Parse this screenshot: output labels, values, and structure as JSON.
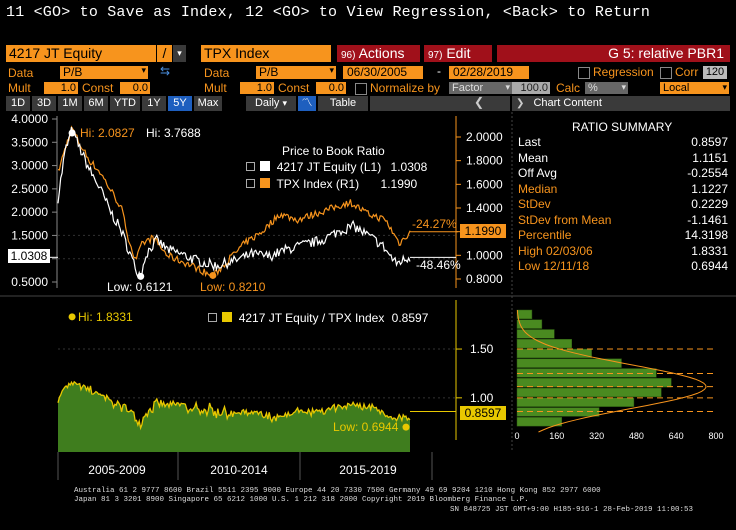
{
  "command_line": "11 <GO> to Save as Index, 12 <GO> to View Regression, <Back> to Return",
  "header": {
    "security1": "4217 JT Equity",
    "separator": "/",
    "security2": "TPX Index",
    "actions_label": "Actions",
    "actions_key": "96)",
    "edit_label": "Edit",
    "edit_key": "97)",
    "page_title": "G 5: relative PBR1"
  },
  "row2": {
    "data_label": "Data",
    "data1_value": "P/B",
    "data2_label": "Data",
    "data2_value": "P/B",
    "start_date": "06/30/2005",
    "dash": "-",
    "end_date": "02/28/2019",
    "regression_label": "Regression",
    "corr_label": "Corr",
    "corr_value": "120"
  },
  "row3": {
    "mult_label": "Mult",
    "mult1_value": "1.0",
    "const_label": "Const",
    "const1_value": "0.0",
    "mult2_label": "Mult",
    "mult2_value": "1.0",
    "const2_label": "Const",
    "const2_value": "0.0",
    "normalize_label": "Normalize by",
    "normalize_value": "Factor",
    "factor_value": "100.0",
    "calc_label": "Calc",
    "calc_value": "%",
    "currency_value": "Local"
  },
  "toolbar": {
    "periods": [
      "1D",
      "3D",
      "1M",
      "6M",
      "YTD",
      "1Y",
      "5Y",
      "Max"
    ],
    "selected_period": "5Y",
    "frequency": "Daily",
    "table_label": "Table",
    "chart_content_label": "Chart Content"
  },
  "top_chart": {
    "title": "Price to Book Ratio",
    "legend": [
      {
        "name": "4217 JT Equity  (L1)",
        "value": "1.0308",
        "color": "#ffffff"
      },
      {
        "name": "TPX Index   (R1)",
        "value": "1.1990",
        "color": "#f7941d"
      }
    ],
    "hi_left": "Hi: 3.7688",
    "hi_right": "Hi: 2.0827",
    "low_left": "Low: 0.6121",
    "low_right": "Low: 0.8210",
    "pct_tpx": "-24.27%",
    "pct_eq": "-48.46%",
    "last_eq": "1.0308",
    "last_tpx": "1.1990",
    "left_ticks": [
      "4.0000",
      "3.5000",
      "3.0000",
      "2.5000",
      "2.0000",
      "1.5000",
      "1.0000",
      "0.5000"
    ],
    "right_ticks": [
      "2.0000",
      "1.8000",
      "1.6000",
      "1.4000",
      "1.2000",
      "1.0000",
      "0.8000"
    ]
  },
  "bottom_chart": {
    "legend_name": "4217 JT Equity / TPX Index",
    "legend_value": "0.8597",
    "hi_label": "Hi: 1.8331",
    "low_label": "Low: 0.6944",
    "last_value": "0.8597",
    "ticks": [
      "1.50",
      "1.00"
    ],
    "x_labels": [
      "2005-2009",
      "2010-2014",
      "2015-2019"
    ],
    "hist_x_ticks": [
      "0",
      "160",
      "320",
      "480",
      "640",
      "800"
    ]
  },
  "ratio_summary": {
    "title": "RATIO SUMMARY",
    "rows": [
      {
        "label": "Last",
        "value": "0.8597",
        "color": "#ffffff"
      },
      {
        "label": "Mean",
        "value": "1.1151",
        "color": "#ffffff"
      },
      {
        "label": "Off Avg",
        "value": "-0.2554",
        "color": "#ffffff"
      },
      {
        "label": "Median",
        "value": "1.1227",
        "color": "#f7941d"
      },
      {
        "label": "StDev",
        "value": "0.2229",
        "color": "#f7941d"
      },
      {
        "label": "StDev from Mean",
        "value": "-1.1461",
        "color": "#f7941d"
      },
      {
        "label": "Percentile",
        "value": "14.3198",
        "color": "#f7941d"
      },
      {
        "label": "High 02/03/06",
        "value": "1.8331",
        "color": "#f7941d"
      },
      {
        "label": "Low 12/11/18",
        "value": "0.6944",
        "color": "#f7941d"
      }
    ]
  },
  "footer": {
    "line1": "Australia 61 2 9777 8600 Brazil 5511 2395 9000 Europe 44 20 7330 7500 Germany 49 69 9204 1210 Hong Kong 852 2977 6000",
    "line2": "Japan 81 3 3201 8900       Singapore 65 6212 1000       U.S. 1 212 318 2000           Copyright 2019 Bloomberg Finance L.P.",
    "line3": "SN 848725 JST  GMT+9:00 H185-916-1 28-Feb-2019 11:00:53"
  },
  "colors": {
    "accent_orange": "#f7941d",
    "header_red": "#a0101a",
    "ratio_fill": "#3f7d1e",
    "ratio_line": "#e8c800",
    "hist_green": "#4a8a20"
  }
}
